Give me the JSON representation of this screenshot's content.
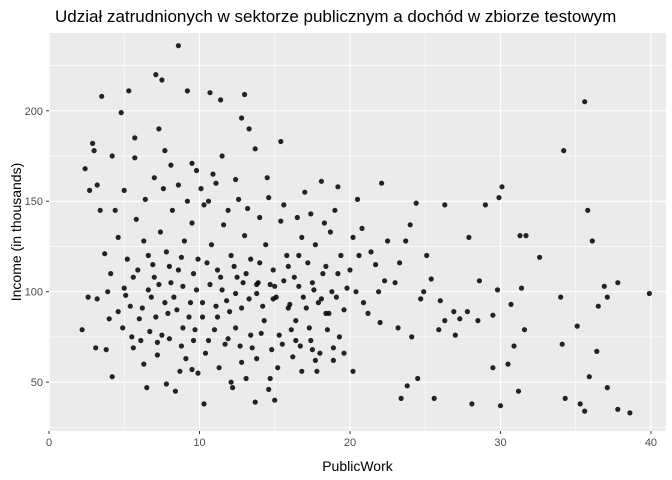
{
  "chart_data": {
    "type": "scatter",
    "title": "Udział zatrudnionych w sektorze publicznym a dochód w zbiorze testowym",
    "xlabel": "PublicWork",
    "ylabel": "Income (in thousands)",
    "xlim": [
      0,
      41
    ],
    "ylim": [
      23,
      243
    ],
    "x_ticks": [
      0,
      10,
      20,
      30,
      40
    ],
    "y_ticks": [
      50,
      100,
      150,
      200
    ],
    "grid": true,
    "legend": "none",
    "colors": {
      "panel": "#ebebeb",
      "grid": "#ffffff",
      "point": "#000000",
      "tick_text": "#4d4d4d"
    },
    "points_sampled": true,
    "points": [
      [
        8.6,
        236
      ],
      [
        7.1,
        220
      ],
      [
        10.7,
        210
      ],
      [
        9.2,
        211
      ],
      [
        11.4,
        206
      ],
      [
        13.0,
        209
      ],
      [
        5.3,
        211
      ],
      [
        3.5,
        208
      ],
      [
        12.8,
        196
      ],
      [
        4.8,
        199
      ],
      [
        7.5,
        217
      ],
      [
        2.4,
        168
      ],
      [
        3.0,
        178
      ],
      [
        2.9,
        182
      ],
      [
        4.2,
        175
      ],
      [
        5.7,
        174
      ],
      [
        3.2,
        159
      ],
      [
        2.7,
        156
      ],
      [
        5.7,
        185
      ],
      [
        7.3,
        190
      ],
      [
        7.7,
        178
      ],
      [
        9.5,
        171
      ],
      [
        11.5,
        175
      ],
      [
        10.9,
        165
      ],
      [
        13.3,
        190
      ],
      [
        13.7,
        179
      ],
      [
        12.4,
        162
      ],
      [
        14.5,
        163
      ],
      [
        15.4,
        183
      ],
      [
        17.0,
        155
      ],
      [
        18.1,
        161
      ],
      [
        19.2,
        158
      ],
      [
        20.5,
        151
      ],
      [
        22.1,
        160
      ],
      [
        24.4,
        149
      ],
      [
        26.3,
        148
      ],
      [
        27.9,
        130
      ],
      [
        29.0,
        148
      ],
      [
        29.9,
        152
      ],
      [
        30.1,
        158
      ],
      [
        31.3,
        131
      ],
      [
        31.7,
        131
      ],
      [
        32.6,
        119
      ],
      [
        34.2,
        178
      ],
      [
        35.6,
        205
      ],
      [
        35.8,
        145
      ],
      [
        36.1,
        128
      ],
      [
        36.9,
        103
      ],
      [
        37.1,
        97
      ],
      [
        37.8,
        105
      ],
      [
        39.9,
        99
      ],
      [
        36.5,
        92
      ],
      [
        34.0,
        97
      ],
      [
        35.1,
        81
      ],
      [
        34.1,
        71
      ],
      [
        36.4,
        67
      ],
      [
        35.9,
        53
      ],
      [
        34.3,
        41
      ],
      [
        35.3,
        38
      ],
      [
        35.6,
        34
      ],
      [
        37.1,
        47
      ],
      [
        37.8,
        35
      ],
      [
        38.6,
        33
      ],
      [
        30.0,
        37
      ],
      [
        29.5,
        58
      ],
      [
        30.5,
        60
      ],
      [
        31.2,
        45
      ],
      [
        30.9,
        70
      ],
      [
        31.6,
        79
      ],
      [
        31.4,
        102
      ],
      [
        29.8,
        101
      ],
      [
        28.5,
        84
      ],
      [
        26.9,
        89
      ],
      [
        27.0,
        76
      ],
      [
        28.1,
        38
      ],
      [
        25.6,
        41
      ],
      [
        24.5,
        52
      ],
      [
        23.4,
        41
      ],
      [
        23.8,
        48
      ],
      [
        23.2,
        80
      ],
      [
        24.1,
        75
      ],
      [
        24.7,
        96
      ],
      [
        25.4,
        107
      ],
      [
        25.1,
        120
      ],
      [
        23.7,
        128
      ],
      [
        24.0,
        137
      ],
      [
        23.3,
        116
      ],
      [
        25.9,
        79
      ],
      [
        26.3,
        84
      ],
      [
        27.8,
        89
      ],
      [
        22.0,
        83
      ],
      [
        21.2,
        88
      ],
      [
        22.3,
        106
      ],
      [
        21.7,
        115
      ],
      [
        20.9,
        94
      ],
      [
        20.6,
        120
      ],
      [
        19.8,
        102
      ],
      [
        19.2,
        110
      ],
      [
        18.6,
        88
      ],
      [
        18.9,
        62
      ],
      [
        19.3,
        75
      ],
      [
        20.2,
        56
      ],
      [
        17.8,
        56
      ],
      [
        17.5,
        68
      ],
      [
        16.4,
        73
      ],
      [
        16.2,
        64
      ],
      [
        15.2,
        58
      ],
      [
        15.0,
        40
      ],
      [
        14.7,
        52
      ],
      [
        13.7,
        39
      ],
      [
        13.8,
        63
      ],
      [
        12.8,
        61
      ],
      [
        12.1,
        50
      ],
      [
        11.7,
        71
      ],
      [
        10.3,
        38
      ],
      [
        9.5,
        57
      ],
      [
        9.1,
        63
      ],
      [
        8.7,
        56
      ],
      [
        7.8,
        49
      ],
      [
        7.2,
        65
      ],
      [
        6.3,
        60
      ],
      [
        6.1,
        73
      ],
      [
        5.6,
        69
      ],
      [
        4.9,
        80
      ],
      [
        4.2,
        53
      ],
      [
        3.8,
        68
      ],
      [
        3.1,
        69
      ],
      [
        2.2,
        79
      ],
      [
        2.6,
        97
      ],
      [
        3.2,
        96
      ],
      [
        3.9,
        100
      ],
      [
        4.6,
        89
      ],
      [
        5.1,
        98
      ],
      [
        5.6,
        108
      ],
      [
        6.2,
        91
      ],
      [
        6.6,
        101
      ],
      [
        7.1,
        86
      ],
      [
        7.5,
        76
      ],
      [
        7.9,
        88
      ],
      [
        8.3,
        97
      ],
      [
        8.9,
        80
      ],
      [
        9.4,
        94
      ],
      [
        9.7,
        79
      ],
      [
        10.2,
        86
      ],
      [
        10.6,
        73
      ],
      [
        11.2,
        86
      ],
      [
        11.8,
        95
      ],
      [
        12.4,
        80
      ],
      [
        12.8,
        91
      ],
      [
        13.4,
        76
      ],
      [
        13.8,
        99
      ],
      [
        14.3,
        84
      ],
      [
        14.9,
        96
      ],
      [
        15.3,
        76
      ],
      [
        15.9,
        91
      ],
      [
        16.4,
        84
      ],
      [
        16.9,
        97
      ],
      [
        17.3,
        80
      ],
      [
        17.9,
        94
      ],
      [
        18.4,
        88
      ],
      [
        18.8,
        100
      ],
      [
        3.7,
        121
      ],
      [
        4.1,
        110
      ],
      [
        4.6,
        130
      ],
      [
        5.2,
        118
      ],
      [
        5.8,
        140
      ],
      [
        6.3,
        128
      ],
      [
        6.9,
        115
      ],
      [
        7.4,
        133
      ],
      [
        7.8,
        122
      ],
      [
        8.2,
        145
      ],
      [
        8.6,
        112
      ],
      [
        9.0,
        128
      ],
      [
        9.5,
        138
      ],
      [
        9.9,
        118
      ],
      [
        10.3,
        148
      ],
      [
        10.8,
        126
      ],
      [
        11.2,
        112
      ],
      [
        11.6,
        137
      ],
      [
        12.1,
        120
      ],
      [
        12.5,
        108
      ],
      [
        13.0,
        131
      ],
      [
        13.4,
        118
      ],
      [
        13.9,
        105
      ],
      [
        14.4,
        126
      ],
      [
        14.9,
        112
      ],
      [
        15.4,
        139
      ],
      [
        15.8,
        120
      ],
      [
        16.3,
        108
      ],
      [
        16.8,
        130
      ],
      [
        17.2,
        116
      ],
      [
        17.7,
        126
      ],
      [
        18.2,
        110
      ],
      [
        18.7,
        133
      ],
      [
        19.4,
        120
      ],
      [
        20.0,
        112
      ],
      [
        3.4,
        145
      ],
      [
        4.4,
        145
      ],
      [
        5.0,
        156
      ],
      [
        6.4,
        151
      ],
      [
        7.0,
        163
      ],
      [
        7.6,
        157
      ],
      [
        8.1,
        170
      ],
      [
        8.6,
        159
      ],
      [
        9.2,
        150
      ],
      [
        9.8,
        167
      ],
      [
        10.1,
        157
      ],
      [
        10.6,
        150
      ],
      [
        11.1,
        160
      ],
      [
        11.9,
        145
      ],
      [
        12.6,
        151
      ],
      [
        13.2,
        146
      ],
      [
        14.0,
        141
      ],
      [
        14.6,
        152
      ],
      [
        15.6,
        148
      ],
      [
        16.5,
        141
      ],
      [
        17.4,
        143
      ],
      [
        18.3,
        138
      ],
      [
        19.0,
        145
      ],
      [
        20.2,
        130
      ],
      [
        20.8,
        135
      ],
      [
        21.4,
        122
      ],
      [
        22.5,
        128
      ],
      [
        23.0,
        105
      ],
      [
        24.9,
        100
      ],
      [
        26.0,
        95
      ],
      [
        27.3,
        85
      ],
      [
        28.6,
        106
      ],
      [
        29.5,
        87
      ],
      [
        30.7,
        93
      ],
      [
        5.4,
        92
      ],
      [
        6.0,
        85
      ],
      [
        6.8,
        97
      ],
      [
        7.3,
        104
      ],
      [
        7.7,
        94
      ],
      [
        8.1,
        105
      ],
      [
        8.5,
        90
      ],
      [
        8.9,
        103
      ],
      [
        9.3,
        86
      ],
      [
        9.8,
        101
      ],
      [
        10.2,
        94
      ],
      [
        10.7,
        104
      ],
      [
        11.1,
        92
      ],
      [
        11.5,
        101
      ],
      [
        12.0,
        89
      ],
      [
        12.4,
        99
      ],
      [
        12.9,
        105
      ],
      [
        13.3,
        96
      ],
      [
        13.8,
        104
      ],
      [
        14.2,
        92
      ],
      [
        14.7,
        104
      ],
      [
        15.1,
        97
      ],
      [
        15.6,
        106
      ],
      [
        16.0,
        93
      ],
      [
        16.6,
        103
      ],
      [
        17.1,
        91
      ],
      [
        17.6,
        101
      ],
      [
        18.1,
        96
      ],
      [
        18.5,
        79
      ],
      [
        19.6,
        90
      ],
      [
        4.0,
        85
      ],
      [
        5.5,
        75
      ],
      [
        6.7,
        78
      ],
      [
        7.2,
        72
      ],
      [
        8.0,
        74
      ],
      [
        8.8,
        70
      ],
      [
        9.6,
        73
      ],
      [
        10.4,
        66
      ],
      [
        11.0,
        79
      ],
      [
        11.9,
        74
      ],
      [
        12.7,
        70
      ],
      [
        13.5,
        69
      ],
      [
        14.1,
        77
      ],
      [
        14.8,
        68
      ],
      [
        15.5,
        71
      ],
      [
        16.1,
        79
      ],
      [
        16.7,
        70
      ],
      [
        17.4,
        73
      ],
      [
        18.0,
        66
      ],
      [
        18.9,
        69
      ],
      [
        6.5,
        47
      ],
      [
        8.4,
        45
      ],
      [
        9.9,
        55
      ],
      [
        11.3,
        58
      ],
      [
        12.2,
        47
      ],
      [
        13.1,
        52
      ],
      [
        14.6,
        46
      ],
      [
        16.8,
        56
      ],
      [
        17.7,
        62
      ],
      [
        19.6,
        66
      ],
      [
        5.0,
        102
      ],
      [
        5.9,
        112
      ],
      [
        6.6,
        120
      ],
      [
        7.0,
        108
      ],
      [
        8.0,
        114
      ],
      [
        8.8,
        119
      ],
      [
        9.6,
        110
      ],
      [
        10.5,
        116
      ],
      [
        11.4,
        108
      ],
      [
        12.3,
        114
      ],
      [
        13.1,
        110
      ],
      [
        14.0,
        116
      ],
      [
        15.0,
        103
      ],
      [
        15.9,
        114
      ],
      [
        16.6,
        120
      ],
      [
        17.5,
        105
      ],
      [
        18.4,
        114
      ],
      [
        19.1,
        97
      ],
      [
        20.4,
        100
      ],
      [
        21.9,
        100
      ]
    ]
  }
}
